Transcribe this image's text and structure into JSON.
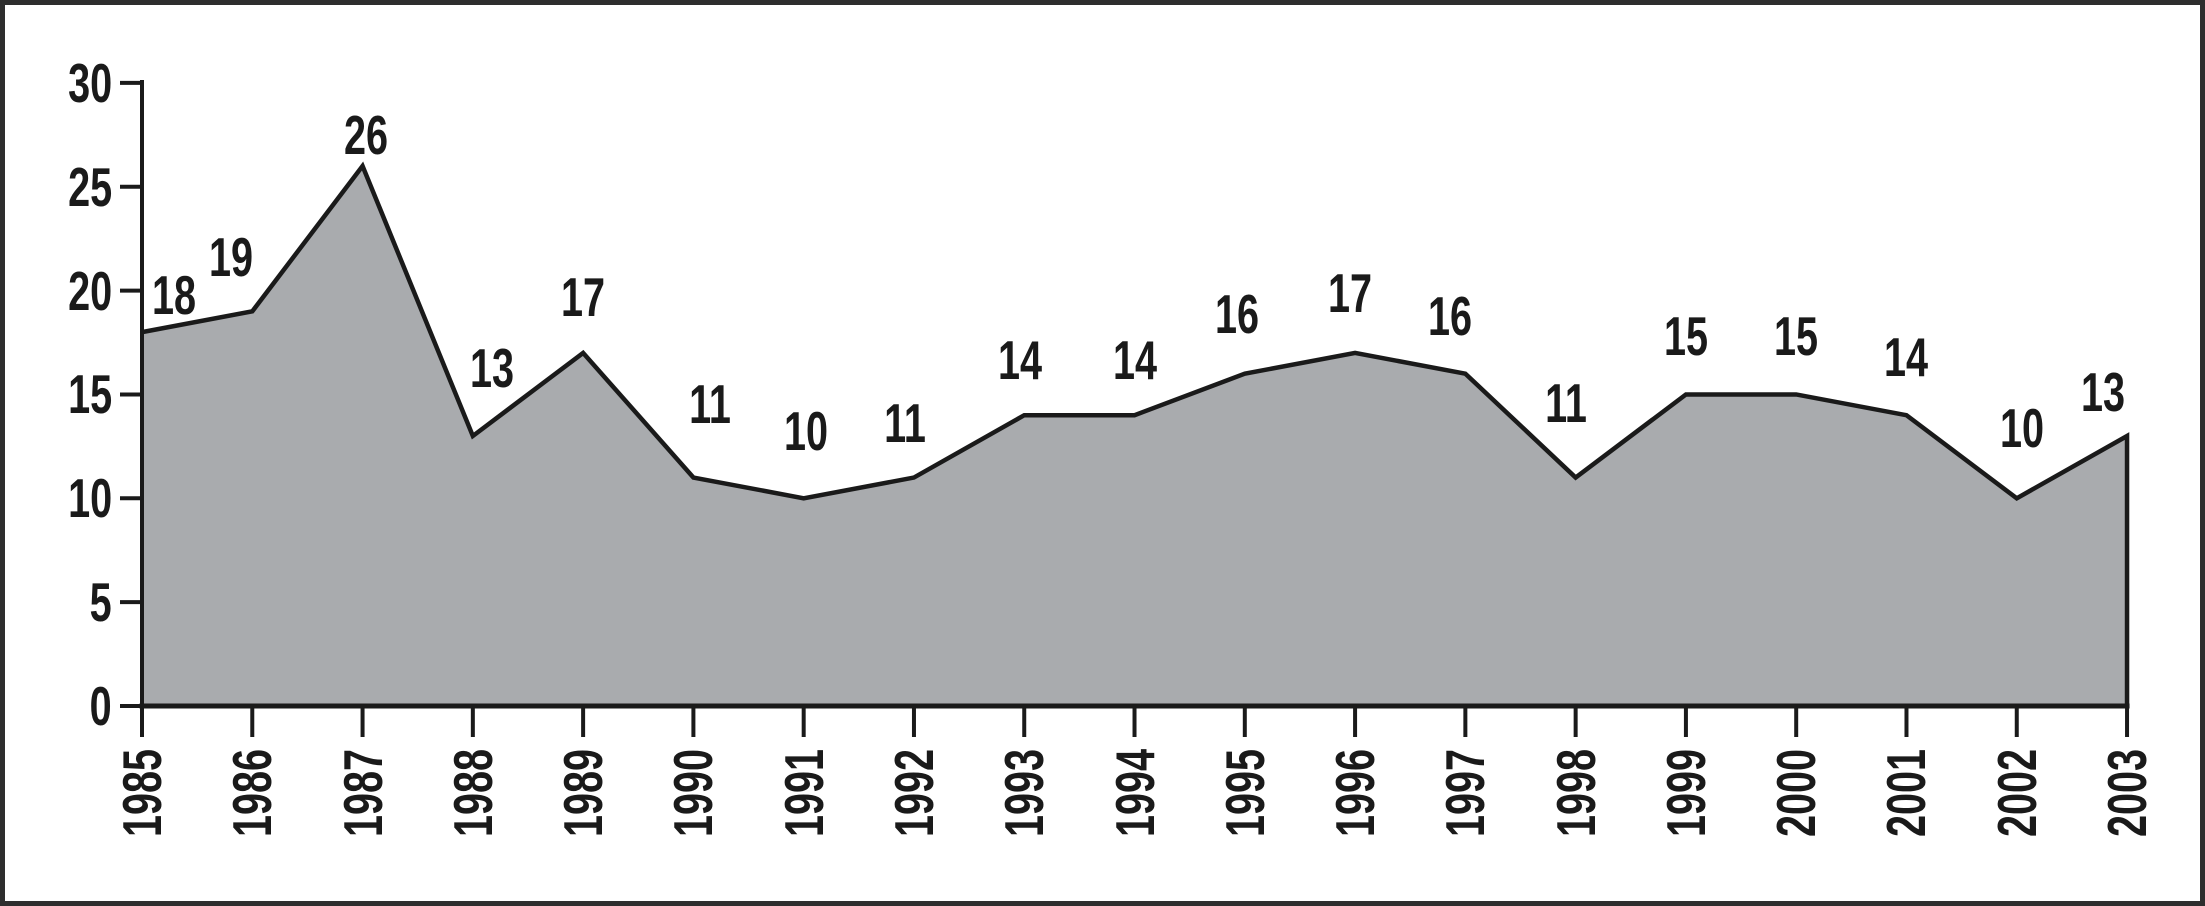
{
  "chart_data": {
    "type": "area",
    "title": "",
    "xlabel": "",
    "ylabel": "",
    "categories": [
      "1985",
      "1986",
      "1987",
      "1988",
      "1989",
      "1990",
      "1991",
      "1992",
      "1993",
      "1994",
      "1995",
      "1996",
      "1997",
      "1998",
      "1999",
      "2000",
      "2001",
      "2002",
      "2003"
    ],
    "values": [
      18,
      19,
      26,
      13,
      17,
      11,
      10,
      11,
      14,
      14,
      16,
      17,
      16,
      11,
      15,
      15,
      14,
      10,
      13
    ],
    "data_labels": [
      "18",
      "19",
      "26",
      "13",
      "17",
      "11",
      "10",
      "11",
      "14",
      "14",
      "16",
      "17",
      "16",
      "11",
      "15",
      "15",
      "14",
      "10",
      "13"
    ],
    "yticks": [
      0,
      5,
      10,
      15,
      20,
      25,
      30
    ],
    "ylim": [
      0,
      30
    ],
    "x_tick_rotation": -90,
    "grid": false,
    "legend": false,
    "colors": {
      "fill": "#a9abae",
      "line": "#1a1a1a",
      "text": "#1a1a1a",
      "frame": "#2e2e2e",
      "background": "#ffffff"
    }
  }
}
